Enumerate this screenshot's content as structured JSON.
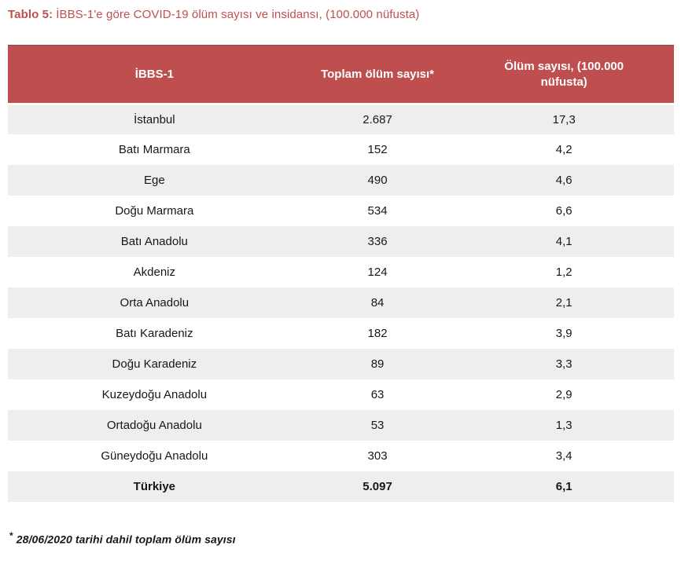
{
  "title": {
    "prefix": "Tablo 5:",
    "text": "İBBS-1'e göre COVID-19 ölüm sayısı ve insidansı, (100.000 nüfusta)"
  },
  "table": {
    "columns": [
      "İBBS-1",
      "Toplam ölüm sayısı*",
      "Ölüm sayısı, (100.000 nüfusta)"
    ],
    "rows": [
      {
        "region": "İstanbul",
        "total_deaths": "2.687",
        "incidence": "17,3"
      },
      {
        "region": "Batı Marmara",
        "total_deaths": "152",
        "incidence": "4,2"
      },
      {
        "region": "Ege",
        "total_deaths": "490",
        "incidence": "4,6"
      },
      {
        "region": "Doğu Marmara",
        "total_deaths": "534",
        "incidence": "6,6"
      },
      {
        "region": "Batı Anadolu",
        "total_deaths": "336",
        "incidence": "4,1"
      },
      {
        "region": "Akdeniz",
        "total_deaths": "124",
        "incidence": "1,2"
      },
      {
        "region": "Orta Anadolu",
        "total_deaths": "84",
        "incidence": "2,1"
      },
      {
        "region": "Batı Karadeniz",
        "total_deaths": "182",
        "incidence": "3,9"
      },
      {
        "region": "Doğu Karadeniz",
        "total_deaths": "89",
        "incidence": "3,3"
      },
      {
        "region": "Kuzeydoğu Anadolu",
        "total_deaths": "63",
        "incidence": "2,9"
      },
      {
        "region": "Ortadoğu Anadolu",
        "total_deaths": "53",
        "incidence": "1,3"
      },
      {
        "region": "Güneydoğu Anadolu",
        "total_deaths": "303",
        "incidence": "3,4"
      },
      {
        "region": "Türkiye",
        "total_deaths": "5.097",
        "incidence": "6,1",
        "emphasis": true
      }
    ]
  },
  "footnote": {
    "marker": "*",
    "text": "28/06/2020 tarihi dahil toplam ölüm sayısı"
  },
  "colors": {
    "header_bg": "#BF4F4E",
    "header_border_top": "#A34B48",
    "header_border_bottom": "#9B403D",
    "row_shade": "#EFEEEE",
    "title_text": "#C0504D",
    "body_text": "#17161C"
  }
}
